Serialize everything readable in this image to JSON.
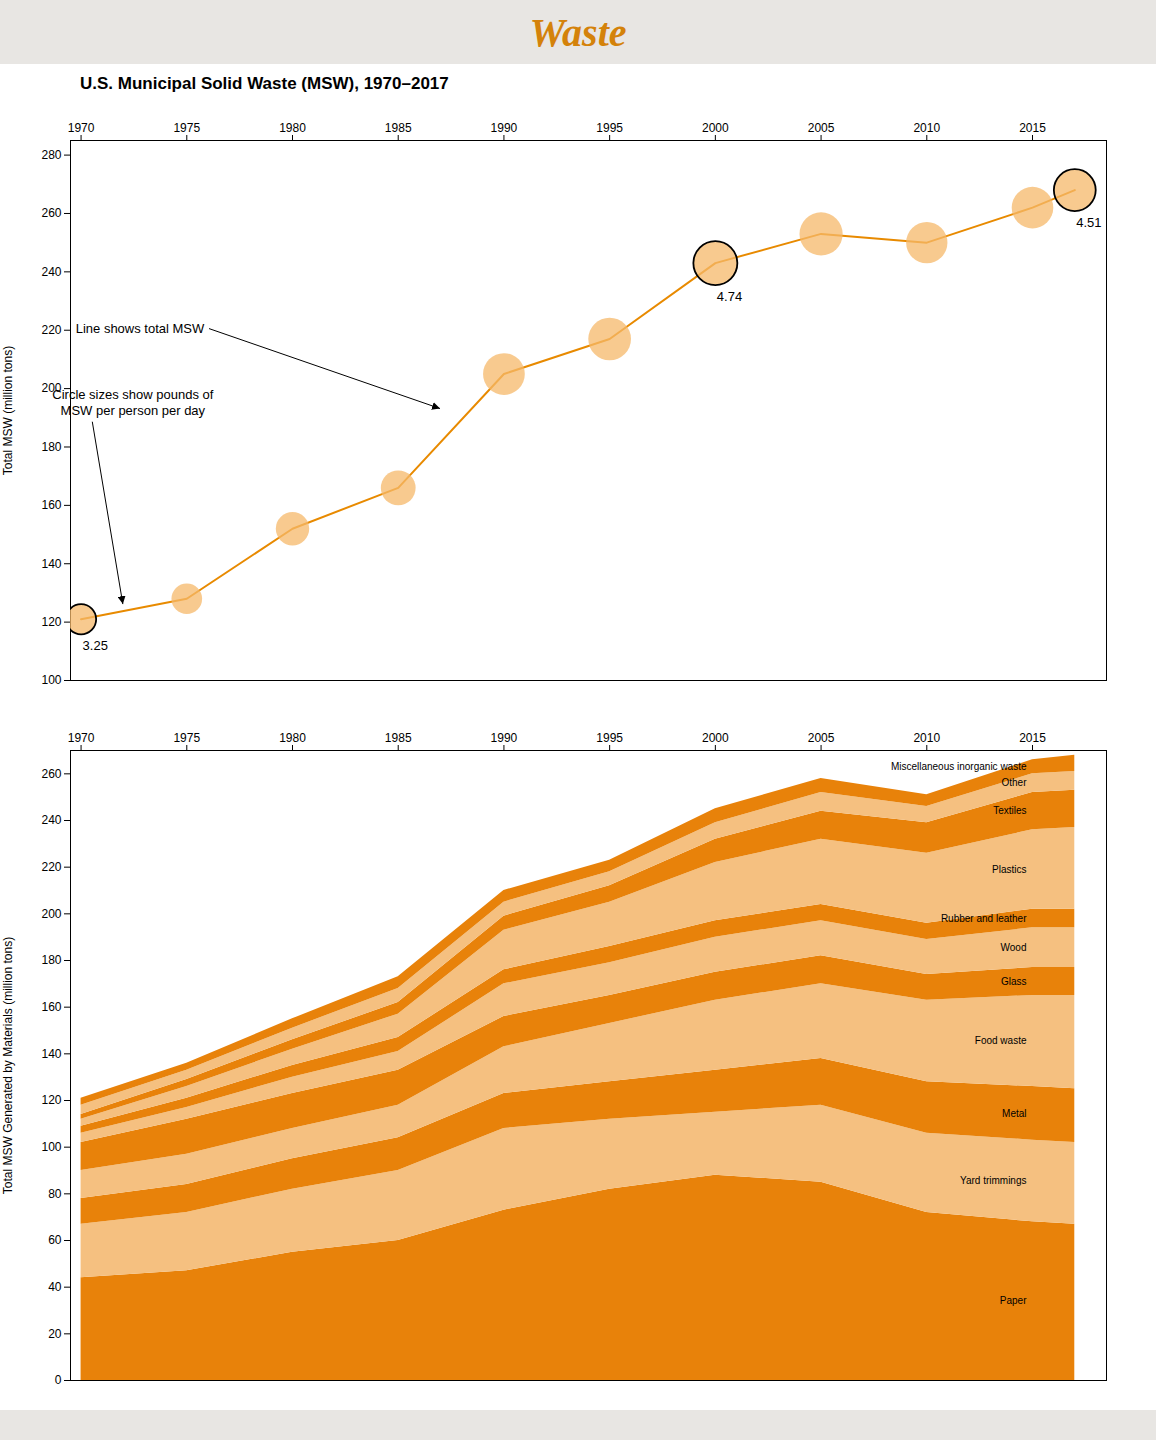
{
  "chart_data": [
    {
      "type": "line",
      "title": "Waste",
      "subtitle": "U.S. Municipal Solid Waste (MSW), 1970–2017",
      "x": [
        1970,
        1975,
        1980,
        1985,
        1990,
        1995,
        2000,
        2005,
        2010,
        2015,
        2017
      ],
      "series": [
        {
          "type": "line",
          "color": "#e88a00",
          "values": [
            121,
            128,
            152,
            166,
            205,
            217,
            243,
            253,
            250,
            262,
            268
          ]
        },
        {
          "type": "scatter",
          "color": "#f5b86a",
          "values": [
            121,
            128,
            152,
            166,
            205,
            217,
            243,
            253,
            250,
            262,
            268
          ],
          "sizes": [
            3.25,
            3.3,
            3.6,
            3.75,
            4.5,
            4.6,
            4.74,
            4.65,
            4.45,
            4.48,
            4.51
          ]
        }
      ],
      "xlim": [
        1969.5,
        2018.5
      ],
      "xticks": [
        1970,
        1975,
        1980,
        1985,
        1990,
        1995,
        2000,
        2005,
        2010,
        2015
      ],
      "ylim": [
        100,
        285
      ],
      "yticks": [
        100,
        120,
        140,
        160,
        180,
        200,
        220,
        240,
        260,
        280
      ],
      "ylabel": "Total MSW (million tons)",
      "annotations": [
        {
          "text": "3.25",
          "x": 1970,
          "y": 121
        },
        {
          "text": "4.74",
          "x": 2000,
          "y": 243
        },
        {
          "text": "4.51",
          "x": 2017,
          "y": 268
        },
        {
          "text": "Line shows total MSW",
          "x": 1987,
          "y": 193
        },
        {
          "text": "Circle sizes show pounds of\nMSW per person per day",
          "x": 1972,
          "y": 126
        }
      ]
    },
    {
      "type": "area",
      "stacked": true,
      "x": [
        1970,
        1975,
        1980,
        1985,
        1990,
        1995,
        2000,
        2005,
        2010,
        2015,
        2017
      ],
      "series": [
        {
          "name": "Paper",
          "color": "#e8820a",
          "values": [
            44,
            47,
            55,
            60,
            73,
            82,
            88,
            85,
            72,
            68,
            67
          ]
        },
        {
          "name": "Yard trimmings",
          "color": "#f5c080",
          "values": [
            23,
            25,
            27,
            30,
            35,
            30,
            27,
            33,
            34,
            35,
            35
          ]
        },
        {
          "name": "Metal",
          "color": "#e8820a",
          "values": [
            11,
            12,
            13,
            14,
            15,
            16,
            18,
            20,
            22,
            23,
            23
          ]
        },
        {
          "name": "Food waste",
          "color": "#f5c080",
          "values": [
            12,
            13,
            13,
            14,
            20,
            25,
            30,
            32,
            35,
            39,
            40
          ]
        },
        {
          "name": "Glass",
          "color": "#e8820a",
          "values": [
            12,
            15,
            15,
            15,
            13,
            12,
            12,
            12,
            11,
            12,
            12
          ]
        },
        {
          "name": "Wood",
          "color": "#f5c080",
          "values": [
            4,
            5,
            7,
            8,
            14,
            14,
            15,
            15,
            15,
            17,
            17
          ]
        },
        {
          "name": "Rubber and leather",
          "color": "#e8820a",
          "values": [
            3,
            4,
            5,
            6,
            6,
            7,
            7,
            7,
            7,
            8,
            8
          ]
        },
        {
          "name": "Plastics",
          "color": "#f5c080",
          "values": [
            3,
            5,
            7,
            10,
            17,
            19,
            25,
            28,
            30,
            34,
            35
          ]
        },
        {
          "name": "Textiles",
          "color": "#e8820a",
          "values": [
            2,
            3,
            4,
            5,
            6,
            7,
            10,
            12,
            13,
            16,
            16
          ]
        },
        {
          "name": "Other",
          "color": "#f5c080",
          "values": [
            4,
            4,
            5,
            6,
            6,
            6,
            7,
            8,
            7,
            8,
            8
          ]
        },
        {
          "name": "Miscellaneous inorganic waste",
          "color": "#e8820a",
          "values": [
            3,
            3,
            4,
            5,
            5,
            5,
            6,
            6,
            5,
            6,
            7
          ]
        }
      ],
      "xlim": [
        1969.5,
        2018.5
      ],
      "xticks": [
        1970,
        1975,
        1980,
        1985,
        1990,
        1995,
        2000,
        2005,
        2010,
        2015
      ],
      "ylim": [
        0,
        270
      ],
      "yticks": [
        0,
        20,
        40,
        60,
        80,
        100,
        120,
        140,
        160,
        180,
        200,
        220,
        240,
        260
      ],
      "ylabel": "Total MSW Generated by Materials (million tons)"
    }
  ]
}
